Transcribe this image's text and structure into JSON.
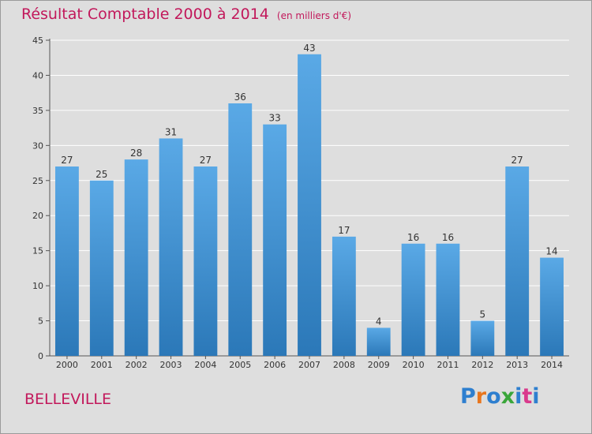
{
  "chart_data": {
    "type": "bar",
    "title": "Résultat Comptable 2000 à 2014",
    "subtitle": "(en milliers d'€)",
    "categories": [
      "2000",
      "2001",
      "2002",
      "2003",
      "2004",
      "2005",
      "2006",
      "2007",
      "2008",
      "2009",
      "2010",
      "2011",
      "2012",
      "2013",
      "2014"
    ],
    "values": [
      27,
      25,
      28,
      31,
      27,
      36,
      33,
      43,
      17,
      4,
      16,
      16,
      5,
      27,
      14
    ],
    "ylim": [
      0,
      45
    ],
    "yticks": [
      0,
      5,
      10,
      15,
      20,
      25,
      30,
      35,
      40,
      45
    ],
    "xlabel": "",
    "ylabel": "",
    "grid": true,
    "bar_color_top": "#5aa9e6",
    "bar_color_bottom": "#2b78b8"
  },
  "footer": {
    "commune": "BELLEVILLE",
    "logo": "Proxiti"
  },
  "colors": {
    "title": "#c2185b",
    "background": "#dedede",
    "gridline": "#ffffff"
  }
}
